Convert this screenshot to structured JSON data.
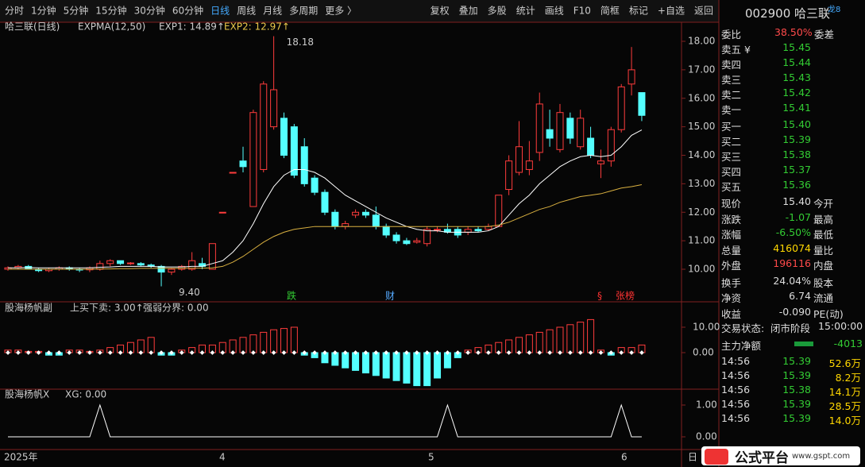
{
  "toolbar": {
    "periods": [
      "分时",
      "1分钟",
      "5分钟",
      "15分钟",
      "30分钟",
      "60分钟",
      "日线",
      "周线",
      "月线",
      "多周期",
      "更多 〉"
    ],
    "active": 6,
    "buttons": [
      "复权",
      "叠加",
      "多股",
      "统计",
      "画线",
      "F10",
      "简框",
      "标记",
      "+自选",
      "返回"
    ]
  },
  "chart": {
    "title": "哈三联(日线)",
    "indicator": "EXPMA(12,50)",
    "exp1_label": "EXP1: 14.89↑",
    "exp2_label": "EXP2: 12.97↑",
    "high_label": "18.18",
    "low_label": "9.40",
    "yticks": [
      {
        "value": 18,
        "label": "18.00"
      },
      {
        "value": 17,
        "label": "17.00"
      },
      {
        "value": 16,
        "label": "16.00"
      },
      {
        "value": 15,
        "label": "15.00"
      },
      {
        "value": 14,
        "label": "14.00"
      },
      {
        "value": 13,
        "label": "13.00"
      },
      {
        "value": 12,
        "label": "12.00"
      },
      {
        "value": 11,
        "label": "11.00"
      },
      {
        "value": 10,
        "label": "10.00"
      }
    ],
    "candles": [
      [
        10.0,
        10.1,
        9.95,
        10.05
      ],
      [
        10.05,
        10.15,
        10.0,
        10.1
      ],
      [
        10.1,
        10.15,
        10.0,
        10.02
      ],
      [
        10.0,
        10.05,
        9.9,
        9.95
      ],
      [
        9.95,
        10.05,
        9.9,
        10.0
      ],
      [
        10.0,
        10.1,
        9.95,
        10.05
      ],
      [
        10.05,
        10.1,
        9.95,
        10.0
      ],
      [
        10.0,
        10.05,
        9.9,
        9.98
      ],
      [
        9.98,
        10.1,
        9.9,
        10.05
      ],
      [
        10.0,
        10.3,
        9.95,
        10.2
      ],
      [
        10.2,
        10.35,
        10.1,
        10.3
      ],
      [
        10.3,
        10.3,
        10.15,
        10.2
      ],
      [
        10.2,
        10.25,
        10.15,
        10.22
      ],
      [
        10.2,
        10.25,
        10.1,
        10.15
      ],
      [
        10.15,
        10.2,
        10.05,
        10.1
      ],
      [
        10.1,
        10.15,
        9.4,
        9.9
      ],
      [
        9.9,
        10.05,
        9.8,
        10.0
      ],
      [
        10.0,
        10.15,
        9.95,
        10.1
      ],
      [
        10.0,
        10.6,
        9.95,
        10.3
      ],
      [
        10.2,
        10.4,
        10.0,
        10.1
      ],
      [
        10.0,
        10.9,
        10.0,
        10.9
      ],
      [
        12.0,
        12.0,
        12.0,
        12.0
      ],
      [
        13.4,
        13.4,
        13.4,
        13.4
      ],
      [
        13.8,
        14.3,
        13.4,
        13.6
      ],
      [
        12.2,
        15.6,
        12.2,
        15.5
      ],
      [
        13.5,
        16.6,
        13.4,
        16.5
      ],
      [
        15.0,
        18.18,
        14.9,
        16.3
      ],
      [
        15.3,
        15.5,
        13.9,
        14.0
      ],
      [
        15.0,
        15.1,
        13.2,
        13.3
      ],
      [
        14.3,
        14.6,
        12.9,
        13.0
      ],
      [
        13.2,
        13.3,
        12.6,
        12.7
      ],
      [
        12.7,
        12.8,
        11.9,
        12.0
      ],
      [
        12.0,
        12.1,
        11.4,
        11.5
      ],
      [
        11.5,
        11.7,
        11.4,
        11.6
      ],
      [
        11.9,
        12.1,
        11.8,
        12.0
      ],
      [
        12.0,
        12.1,
        11.8,
        11.9
      ],
      [
        11.9,
        12.2,
        11.4,
        11.5
      ],
      [
        11.5,
        11.6,
        11.1,
        11.2
      ],
      [
        11.2,
        11.3,
        10.9,
        11.0
      ],
      [
        11.0,
        11.1,
        10.85,
        10.9
      ],
      [
        10.95,
        11.1,
        10.9,
        11.0
      ],
      [
        10.9,
        11.5,
        10.8,
        11.4
      ],
      [
        11.4,
        11.5,
        11.3,
        11.4
      ],
      [
        11.4,
        11.6,
        11.25,
        11.3
      ],
      [
        11.4,
        11.5,
        11.1,
        11.2
      ],
      [
        11.3,
        11.5,
        11.2,
        11.4
      ],
      [
        11.4,
        11.5,
        11.3,
        11.35
      ],
      [
        11.4,
        11.6,
        11.35,
        11.5
      ],
      [
        11.5,
        12.6,
        11.5,
        12.6
      ],
      [
        12.8,
        14.0,
        12.6,
        13.8
      ],
      [
        13.4,
        15.2,
        13.3,
        14.3
      ],
      [
        13.5,
        14.5,
        13.3,
        13.8
      ],
      [
        14.1,
        16.2,
        13.8,
        15.8
      ],
      [
        14.9,
        15.6,
        14.3,
        14.6
      ],
      [
        14.2,
        15.8,
        14.1,
        15.5
      ],
      [
        15.3,
        15.5,
        14.4,
        14.6
      ],
      [
        14.3,
        15.6,
        14.2,
        15.3
      ],
      [
        14.6,
        15.0,
        13.9,
        14.0
      ],
      [
        13.7,
        14.2,
        13.2,
        13.8
      ],
      [
        13.8,
        15.0,
        13.6,
        14.9
      ],
      [
        14.9,
        16.5,
        14.8,
        16.4
      ],
      [
        16.5,
        17.8,
        16.1,
        17.0
      ],
      [
        16.2,
        16.2,
        15.2,
        15.4
      ]
    ],
    "exp1": [
      10.05,
      10.05,
      10.06,
      10.05,
      10.05,
      10.05,
      10.05,
      10.05,
      10.05,
      10.07,
      10.08,
      10.1,
      10.1,
      10.1,
      10.1,
      10.08,
      10.08,
      10.08,
      10.1,
      10.1,
      10.2,
      10.3,
      10.6,
      11.0,
      11.6,
      12.3,
      12.9,
      13.3,
      13.5,
      13.5,
      13.4,
      13.2,
      12.9,
      12.6,
      12.4,
      12.2,
      12.0,
      11.8,
      11.65,
      11.5,
      11.4,
      11.35,
      11.35,
      11.3,
      11.3,
      11.3,
      11.3,
      11.35,
      11.5,
      11.9,
      12.3,
      12.6,
      13.0,
      13.3,
      13.6,
      13.8,
      13.95,
      14.0,
      13.95,
      14.0,
      14.3,
      14.7,
      14.89
    ],
    "exp2": [
      10.0,
      10.0,
      10.0,
      10.0,
      10.0,
      10.0,
      10.0,
      10.0,
      10.0,
      10.01,
      10.01,
      10.02,
      10.02,
      10.03,
      10.03,
      10.03,
      10.03,
      10.03,
      10.04,
      10.04,
      10.05,
      10.1,
      10.25,
      10.45,
      10.7,
      10.95,
      11.15,
      11.3,
      11.4,
      11.45,
      11.5,
      11.5,
      11.5,
      11.5,
      11.5,
      11.5,
      11.5,
      11.5,
      11.5,
      11.5,
      11.5,
      11.5,
      11.5,
      11.5,
      11.5,
      11.5,
      11.5,
      11.5,
      11.55,
      11.65,
      11.8,
      11.95,
      12.1,
      12.2,
      12.35,
      12.45,
      12.55,
      12.6,
      12.65,
      12.75,
      12.85,
      12.9,
      12.97
    ],
    "markers": [
      "跌",
      "财",
      "§",
      "张榜"
    ],
    "dates": [
      "2025年",
      4,
      5,
      6,
      "日"
    ]
  },
  "sub1": {
    "title": "股海杨帆副",
    "label1": "上买下卖: 3.00↑",
    "label2": "强弱分界: 0.00",
    "yticks": [
      {
        "value": 10,
        "label": "10.00"
      },
      {
        "value": 0,
        "label": "0.00"
      }
    ],
    "values": [
      1,
      1,
      0.5,
      0.5,
      -1,
      -1,
      1,
      1,
      0.5,
      1,
      2,
      3,
      4,
      5,
      6,
      -1,
      -1,
      1,
      2,
      3,
      3,
      4,
      5,
      6,
      7,
      8,
      9,
      9.5,
      10,
      -1,
      -2,
      -4,
      -5,
      -6,
      -7,
      -8,
      -9,
      -10,
      -11,
      -12,
      -13,
      -13,
      -10,
      -6,
      -2,
      1,
      2,
      3,
      4,
      5,
      6,
      7,
      8,
      9,
      10,
      11,
      12,
      13,
      1,
      -1,
      2,
      2,
      3
    ]
  },
  "sub2": {
    "title": "股海杨帆X",
    "label": "XG: 0.00",
    "yticks": [
      {
        "value": 1,
        "label": "1.00"
      },
      {
        "value": 0,
        "label": "0.00"
      }
    ],
    "values": [
      0,
      0,
      0,
      0,
      0,
      0,
      0,
      0,
      0,
      1,
      0,
      0,
      0,
      0,
      0,
      0,
      0,
      0,
      0,
      0,
      0,
      0,
      0,
      0,
      0,
      0,
      0,
      0,
      0,
      0,
      0,
      0,
      0,
      0,
      0,
      0,
      0,
      0,
      0,
      0,
      0,
      0,
      0,
      1,
      0,
      0,
      0,
      0,
      0,
      0,
      0,
      0,
      0,
      0,
      0,
      0,
      0,
      0,
      0,
      0,
      1,
      0,
      0
    ]
  },
  "quote": {
    "code": "002900 哈三联",
    "tag": "龙8",
    "wei": [
      "委比",
      "38.50%",
      "委差"
    ],
    "book": [
      [
        "卖五 ¥",
        "15.45"
      ],
      [
        "卖四",
        "15.44"
      ],
      [
        "卖三",
        "15.43"
      ],
      [
        "卖二",
        "15.42"
      ],
      [
        "卖一",
        "15.41"
      ],
      [
        "买一",
        "15.40"
      ],
      [
        "买二",
        "15.39"
      ],
      [
        "买三",
        "15.38"
      ],
      [
        "买四",
        "15.37"
      ],
      [
        "买五",
        "15.36"
      ]
    ],
    "stats": [
      [
        "现价",
        "15.40",
        "今开"
      ],
      [
        "涨跌",
        "-1.07",
        "最高"
      ],
      [
        "涨幅",
        "-6.50%",
        "最低"
      ],
      [
        "总量",
        "416074",
        "量比"
      ],
      [
        "外盘",
        "196116",
        "内盘"
      ],
      [
        "换手",
        "24.04%",
        "股本"
      ],
      [
        "净资",
        "6.74",
        "流通"
      ],
      [
        "收益",
        "-0.090",
        "PE(动)"
      ]
    ],
    "status": [
      "交易状态:",
      "闭市阶段",
      "15:00:00"
    ],
    "flow": [
      "主力净额",
      "-4013"
    ],
    "trades": [
      [
        "14:56",
        "15.39",
        "52.6万"
      ],
      [
        "14:56",
        "15.39",
        "8.2万"
      ],
      [
        "14:56",
        "15.38",
        "14.1万"
      ],
      [
        "14:56",
        "15.39",
        "28.5万"
      ],
      [
        "14:56",
        "15.39",
        "14.0万"
      ]
    ]
  },
  "logo": {
    "name": "公式平台",
    "url": "www.gspt.com"
  }
}
